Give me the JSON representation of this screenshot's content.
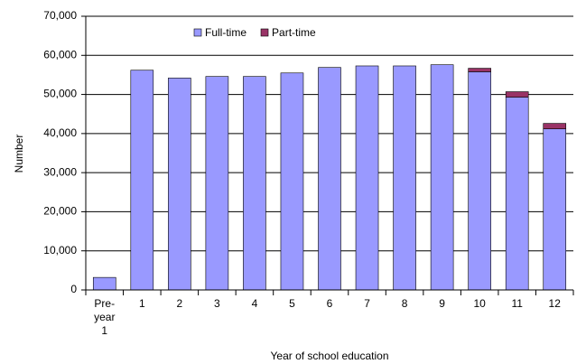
{
  "chart_data": {
    "type": "stacked_bar",
    "categories": [
      "Pre-year 1",
      "1",
      "2",
      "3",
      "4",
      "5",
      "6",
      "7",
      "8",
      "9",
      "10",
      "11",
      "12"
    ],
    "series": [
      {
        "name": "Full-time",
        "color": "#9999ff",
        "values": [
          3200,
          56200,
          54200,
          54600,
          54600,
          55500,
          56900,
          57300,
          57300,
          57600,
          55800,
          49300,
          41200
        ]
      },
      {
        "name": "Part-time",
        "color": "#993366",
        "values": [
          0,
          0,
          0,
          0,
          0,
          0,
          0,
          0,
          0,
          0,
          900,
          1400,
          1400
        ]
      }
    ],
    "xlabel": "Year of school education",
    "ylabel": "Number",
    "ylim": [
      0,
      70000
    ],
    "yticks": [
      0,
      {
        "value": 10000,
        "label": "10,000"
      },
      {
        "value": 20000,
        "label": "20,000"
      },
      {
        "value": 30000,
        "label": "30,000"
      },
      {
        "value": 40000,
        "label": "40,000"
      },
      {
        "value": 50000,
        "label": "50,000"
      },
      {
        "value": 60000,
        "label": "60,000"
      },
      {
        "value": 70000,
        "label": "70,000"
      }
    ],
    "grid": true
  }
}
